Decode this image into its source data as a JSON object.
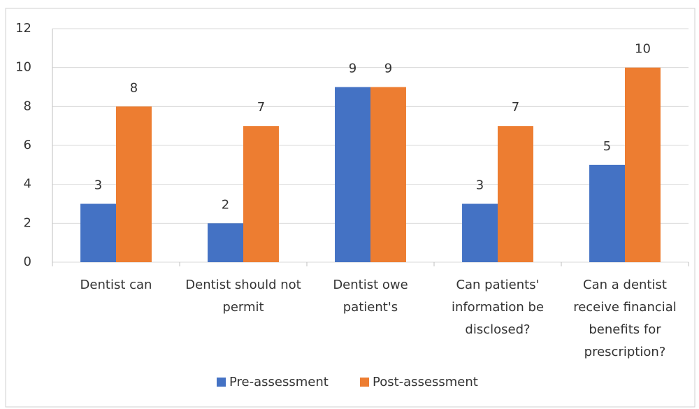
{
  "chart_data": {
    "type": "bar",
    "categories": [
      "Dentist can",
      "Dentist should not permit",
      "Dentist owe patient's",
      "Can patients' information be disclosed?",
      "Can a dentist receive financial benefits for prescription?"
    ],
    "series": [
      {
        "name": "Pre-assessment",
        "color": "#4472c4",
        "values": [
          3,
          2,
          9,
          3,
          5
        ]
      },
      {
        "name": "Post-assessment",
        "color": "#ed7d31",
        "values": [
          8,
          7,
          9,
          7,
          10
        ]
      }
    ],
    "ylim": [
      0,
      12
    ],
    "yticks": [
      0,
      2,
      4,
      6,
      8,
      10,
      12
    ],
    "grid": true,
    "legend": "bottom"
  }
}
